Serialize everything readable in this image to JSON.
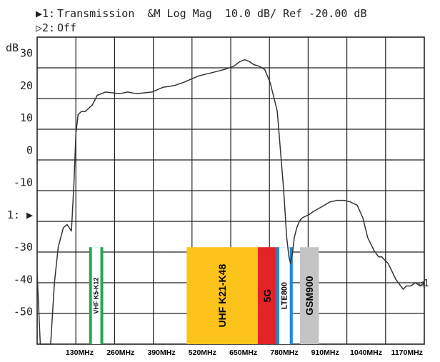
{
  "header": {
    "trace1_marker": "▶1:",
    "trace1_text": "Transmission  &M Log Mag  10.0 dB/ Ref -20.00 dB",
    "trace2_marker": "▷2:",
    "trace2_text": "Off"
  },
  "chart_data": {
    "type": "line",
    "title": "",
    "ylabel": "dB",
    "ylim": [
      -60,
      35
    ],
    "xlim": [
      -5,
      1225
    ],
    "y_ticks": [
      {
        "value": 30,
        "label": "30"
      },
      {
        "value": 20,
        "label": "20"
      },
      {
        "value": 10,
        "label": "10"
      },
      {
        "value": 0,
        "label": "0"
      },
      {
        "value": -10,
        "label": "-10"
      },
      {
        "value": -20,
        "label": "1: ▶"
      },
      {
        "value": -30,
        "label": "-30"
      },
      {
        "value": -40,
        "label": "-40"
      },
      {
        "value": -50,
        "label": "-50"
      }
    ],
    "x_ticks": [
      {
        "value": 130,
        "label": "130MHz"
      },
      {
        "value": 260,
        "label": "260MHz"
      },
      {
        "value": 390,
        "label": "390MHz"
      },
      {
        "value": 520,
        "label": "520MHz"
      },
      {
        "value": 650,
        "label": "650MHz"
      },
      {
        "value": 780,
        "label": "780MHz"
      },
      {
        "value": 910,
        "label": "910MHz"
      },
      {
        "value": 1040,
        "label": "1040MHz"
      },
      {
        "value": 1170,
        "label": "1170MHz"
      }
    ],
    "grid": true,
    "end_marker": "◁1",
    "series": [
      {
        "x": [
          -5,
          5,
          14,
          28,
          38,
          50,
          62,
          78,
          90,
          104,
          112,
          118,
          125,
          136,
          148,
          170,
          186,
          212,
          258,
          282,
          310,
          360,
          395,
          430,
          460,
          508,
          550,
          590,
          620,
          640,
          655,
          668,
          683,
          700,
          718,
          735,
          748,
          758,
          768,
          778,
          788,
          795,
          800,
          806,
          812,
          820,
          828,
          836,
          846,
          858,
          872,
          890,
          908,
          925,
          948,
          970,
          990,
          1012,
          1030,
          1045,
          1065,
          1080,
          1090,
          1100,
          1110,
          1135,
          1150,
          1158,
          1168,
          1182,
          1196,
          1212,
          1225
        ],
        "y": [
          -38,
          -60,
          -60,
          -60,
          -60,
          -41,
          -30,
          -24,
          -23,
          -25,
          -10,
          5,
          11,
          12,
          12,
          14,
          17,
          18,
          17.5,
          18,
          17.5,
          18,
          19.5,
          20,
          21,
          23,
          24,
          25,
          26,
          27.5,
          28,
          27.5,
          26.5,
          26,
          25,
          21,
          16,
          12,
          0,
          -12,
          -27,
          -33,
          -35,
          -32,
          -27,
          -24,
          -22,
          -21,
          -20.5,
          -20,
          -19,
          -18,
          -17,
          -16,
          -15.5,
          -15.5,
          -16,
          -17,
          -21,
          -27,
          -31,
          -33,
          -33,
          -34,
          -35,
          -40,
          -42,
          -43,
          -42,
          -42,
          -41,
          -42,
          -41
        ]
      }
    ]
  },
  "bands": [
    {
      "label": "VHF K5-K12",
      "x_start": 160,
      "x_end": 205,
      "y_top": -30,
      "fill": "#22a84c",
      "inner": "#ffffff",
      "text": "#000000"
    },
    {
      "label": "UHF K21-K48",
      "x_start": 470,
      "x_end": 696,
      "y_top": -30,
      "fill": "#fcc31a",
      "inner": "#fcc31a",
      "text": "#000000"
    },
    {
      "label": "5G",
      "x_start": 696,
      "x_end": 755,
      "y_top": -30,
      "fill": "#e4222a",
      "inner": "#e4222a",
      "text": "#000000"
    },
    {
      "label": "LTE800",
      "x_start": 755,
      "x_end": 807,
      "y_top": -30,
      "fill": "#1e8ad6",
      "inner": "#ffffff",
      "text": "#000000"
    },
    {
      "label": "GSM900",
      "x_start": 830,
      "x_end": 890,
      "y_top": -30,
      "fill": "#c4c4c4",
      "inner": "#c4c4c4",
      "text": "#000000"
    }
  ],
  "colors": {
    "grid": "#222222",
    "trace": "#333333",
    "background": "#ffffff"
  }
}
